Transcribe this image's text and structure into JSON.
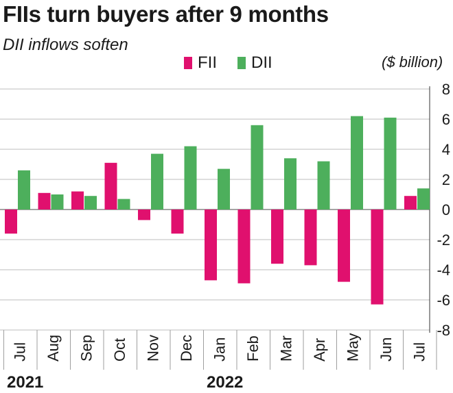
{
  "chart_data": {
    "type": "bar",
    "title": "FIIs turn buyers after 9 months",
    "subtitle": "DII inflows soften",
    "unit_label": "($ billion)",
    "categories": [
      "Jul",
      "Aug",
      "Sep",
      "Oct",
      "Nov",
      "Dec",
      "Jan",
      "Feb",
      "Mar",
      "Apr",
      "May",
      "Jun",
      "Jul"
    ],
    "year_labels": [
      {
        "label": "2021",
        "category_index": 0
      },
      {
        "label": "2022",
        "category_index": 6
      }
    ],
    "series": [
      {
        "name": "FII",
        "color": "#e0106e",
        "values": [
          -1.6,
          1.1,
          1.2,
          3.1,
          -0.7,
          -1.6,
          -4.7,
          -4.9,
          -3.6,
          -3.7,
          -4.8,
          -6.3,
          0.9
        ]
      },
      {
        "name": "DII",
        "color": "#4daf5c",
        "values": [
          2.6,
          1.0,
          0.9,
          0.7,
          3.7,
          4.2,
          2.7,
          5.6,
          3.4,
          3.2,
          6.2,
          6.1,
          1.4
        ]
      }
    ],
    "ylim": [
      -8,
      8
    ],
    "yticks": [
      -8,
      -6,
      -4,
      -2,
      0,
      2,
      4,
      6,
      8
    ],
    "grid": "horizontal",
    "legend_position": "top"
  }
}
